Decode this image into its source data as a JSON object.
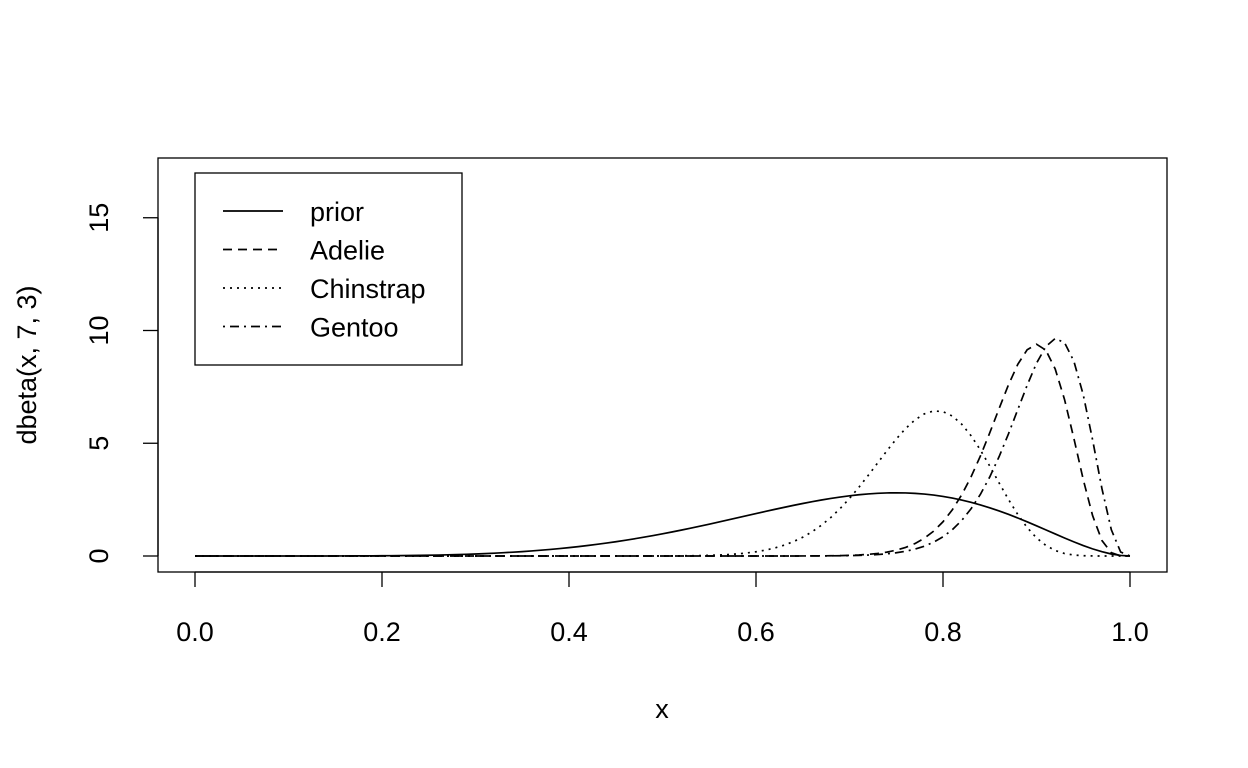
{
  "chart_data": {
    "type": "line",
    "title": "",
    "xlabel": "x",
    "ylabel": "dbeta(x, 7, 3)",
    "xlim": [
      0,
      1
    ],
    "ylim": [
      0,
      17
    ],
    "x_ticks": [
      "0.0",
      "0.2",
      "0.4",
      "0.6",
      "0.8",
      "1.0"
    ],
    "y_ticks": [
      "0",
      "5",
      "10",
      "15"
    ],
    "grid": false,
    "legend_position": "top-left",
    "series": [
      {
        "name": "prior",
        "distribution": "beta",
        "alpha": 7,
        "beta": 3,
        "line_style": "solid",
        "color": "#000000"
      },
      {
        "name": "Adelie",
        "distribution": "beta",
        "alpha": 45.6,
        "beta": 5.95,
        "line_style": "dashed",
        "color": "#000000"
      },
      {
        "name": "Chinstrap",
        "distribution": "beta",
        "alpha": 34,
        "beta": 9.6,
        "line_style": "dotted",
        "color": "#000000"
      },
      {
        "name": "Gentoo",
        "distribution": "beta",
        "alpha": 40,
        "beta": 4.3,
        "line_style": "dotdash",
        "color": "#000000"
      }
    ]
  }
}
